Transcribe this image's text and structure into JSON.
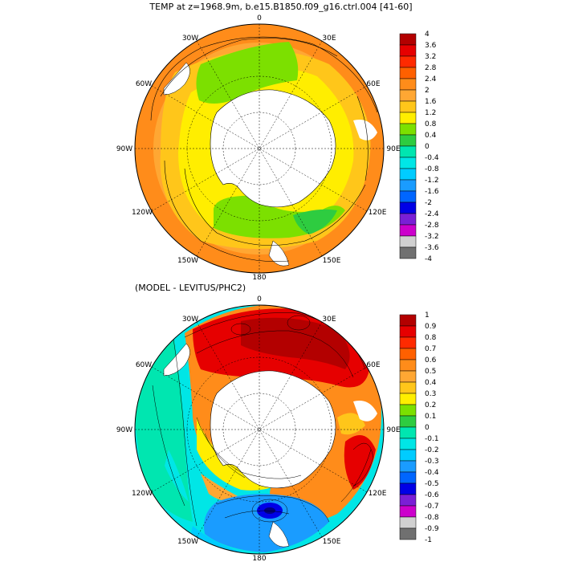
{
  "titles": {
    "top": "TEMP at z=1968.9m, b.e15.B1850.f09_g16.ctrl.004 [41-60]",
    "bottom": "(MODEL - LEVITUS/PHC2)"
  },
  "longitude_labels": [
    "0",
    "30E",
    "60E",
    "90E",
    "120E",
    "150E",
    "180",
    "150W",
    "120W",
    "90W",
    "60W",
    "30W"
  ],
  "panels": [
    {
      "name": "model-temperature",
      "colorbar_values": [
        "4",
        "3.6",
        "3.2",
        "2.8",
        "2.4",
        "2",
        "1.6",
        "1.2",
        "0.8",
        "0.4",
        "0",
        "-0.4",
        "-0.8",
        "-1.2",
        "-1.6",
        "-2",
        "-2.4",
        "-2.8",
        "-3.2",
        "-3.6",
        "-4"
      ],
      "colorbar_colors": [
        "#b30000",
        "#e60000",
        "#ff2a00",
        "#ff6000",
        "#ff8c1a",
        "#ffa733",
        "#ffc61a",
        "#ffee00",
        "#7ce000",
        "#2ecc40",
        "#00e6b0",
        "#00e6e6",
        "#00ccff",
        "#1a9cff",
        "#0066ff",
        "#0000e6",
        "#7a1fd6",
        "#cc00cc",
        "#d0d0d0",
        "#707070"
      ]
    },
    {
      "name": "model-minus-levitus",
      "colorbar_values": [
        "1",
        "0.9",
        "0.8",
        "0.7",
        "0.6",
        "0.5",
        "0.4",
        "0.3",
        "0.2",
        "0.1",
        "0",
        "-0.1",
        "-0.2",
        "-0.3",
        "-0.4",
        "-0.5",
        "-0.6",
        "-0.7",
        "-0.8",
        "-0.9",
        "-1"
      ],
      "colorbar_colors": [
        "#b30000",
        "#e60000",
        "#ff2a00",
        "#ff6000",
        "#ff8c1a",
        "#ffa733",
        "#ffc61a",
        "#ffee00",
        "#7ce000",
        "#2ecc40",
        "#00e6b0",
        "#00e6e6",
        "#00ccff",
        "#1a9cff",
        "#0066ff",
        "#0000e6",
        "#7a1fd6",
        "#cc00cc",
        "#d0d0d0",
        "#707070"
      ]
    }
  ]
}
